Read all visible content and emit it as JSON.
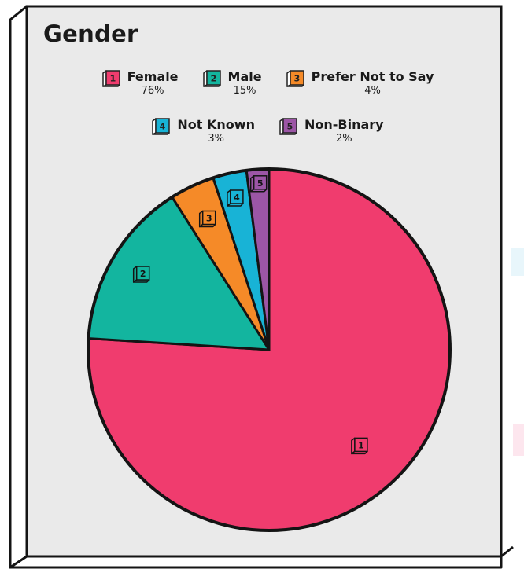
{
  "chart_data": {
    "type": "pie",
    "title": "Gender",
    "legend_placement": "top",
    "start_angle": "12 o'clock",
    "direction": "clockwise",
    "categories": [
      "Female",
      "Male",
      "Prefer Not to Say",
      "Not Known",
      "Non-Binary"
    ],
    "values": [
      76,
      15,
      4,
      3,
      2
    ],
    "percent_labels": [
      "76%",
      "15%",
      "4%",
      "3%",
      "2%"
    ],
    "slice_numbers": [
      "1",
      "2",
      "3",
      "4",
      "5"
    ],
    "colors": [
      "#f03c6e",
      "#13b59f",
      "#f58a28",
      "#18b3d6",
      "#9c56a6"
    ]
  }
}
